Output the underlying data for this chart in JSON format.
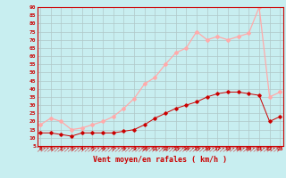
{
  "title": "",
  "xlabel": "Vent moyen/en rafales ( km/h )",
  "bg_color": "#c8eef0",
  "grid_color": "#b0c8c8",
  "line_avg_color": "#cc0000",
  "line_gust_color": "#ffaaaa",
  "x_hours": [
    0,
    1,
    2,
    3,
    4,
    5,
    6,
    7,
    8,
    9,
    10,
    11,
    12,
    13,
    14,
    15,
    16,
    17,
    18,
    19,
    20,
    21,
    22,
    23
  ],
  "avg_wind": [
    13,
    13,
    12,
    11,
    13,
    13,
    13,
    13,
    14,
    15,
    18,
    22,
    25,
    28,
    30,
    32,
    35,
    37,
    38,
    38,
    37,
    36,
    20,
    23
  ],
  "gust_wind": [
    18,
    22,
    20,
    15,
    16,
    18,
    20,
    23,
    28,
    34,
    43,
    47,
    55,
    62,
    65,
    75,
    70,
    72,
    70,
    72,
    74,
    90,
    35,
    38
  ],
  "ylim_min": 5,
  "ylim_max": 90,
  "yticks": [
    5,
    10,
    15,
    20,
    25,
    30,
    35,
    40,
    45,
    50,
    55,
    60,
    65,
    70,
    75,
    80,
    85,
    90
  ],
  "xticks": [
    0,
    1,
    2,
    3,
    4,
    5,
    6,
    7,
    8,
    9,
    10,
    11,
    12,
    13,
    14,
    15,
    16,
    17,
    18,
    19,
    20,
    21,
    22,
    23
  ]
}
